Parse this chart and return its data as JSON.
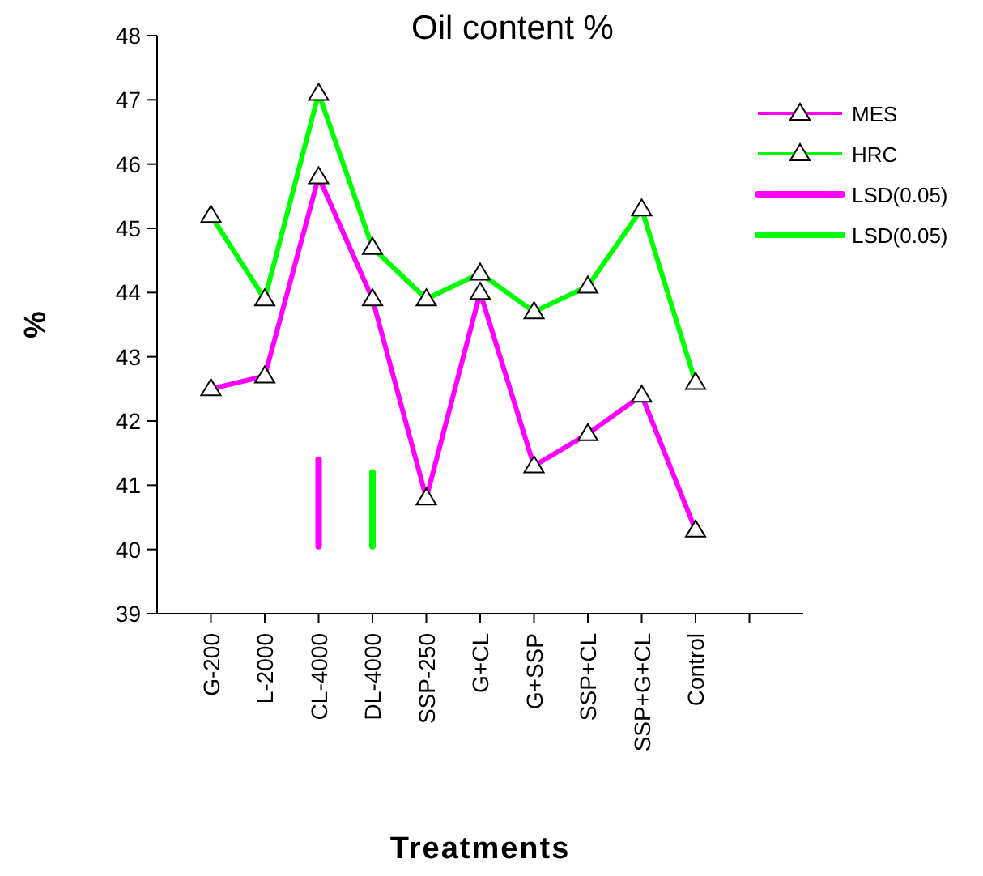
{
  "chart_data": {
    "type": "line",
    "title": "Oil content %",
    "xlabel": "Treatments",
    "ylabel": "%",
    "categories": [
      "G-200",
      "L-2000",
      "CL-4000",
      "DL-4000",
      "SSP-250",
      "G+CL",
      "G+SSP",
      "SSP+CL",
      "SSP+G+CL",
      "Control",
      null
    ],
    "series": [
      {
        "name": "MES",
        "color": "#ff00ff",
        "values": [
          42.5,
          42.7,
          45.8,
          43.9,
          40.8,
          44.0,
          41.3,
          41.8,
          42.4,
          40.3,
          null
        ]
      },
      {
        "name": "HRC",
        "color": "#00ff00",
        "values": [
          45.2,
          43.9,
          47.1,
          44.7,
          43.9,
          44.3,
          43.7,
          44.1,
          45.3,
          42.6,
          null
        ]
      },
      {
        "name": "LSD(0.05)",
        "type": "bar",
        "color": "#ff00ff",
        "base": [
          null,
          null,
          40,
          null,
          null,
          null,
          null,
          null,
          null,
          null,
          null
        ],
        "values": [
          null,
          null,
          1.45,
          null,
          null,
          null,
          null,
          null,
          null,
          null,
          null
        ]
      },
      {
        "name": "LSD(0.05)",
        "type": "bar",
        "color": "#00ff00",
        "base": [
          null,
          null,
          null,
          40,
          null,
          null,
          null,
          null,
          null,
          null,
          null
        ],
        "values": [
          null,
          null,
          null,
          1.25,
          null,
          null,
          null,
          null,
          null,
          null,
          null
        ]
      }
    ],
    "ylim": [
      39,
      48
    ],
    "yticks": [
      39,
      40,
      41,
      42,
      43,
      44,
      45,
      46,
      47,
      48
    ],
    "marker": "triangle",
    "legend": "right",
    "grid": false
  }
}
